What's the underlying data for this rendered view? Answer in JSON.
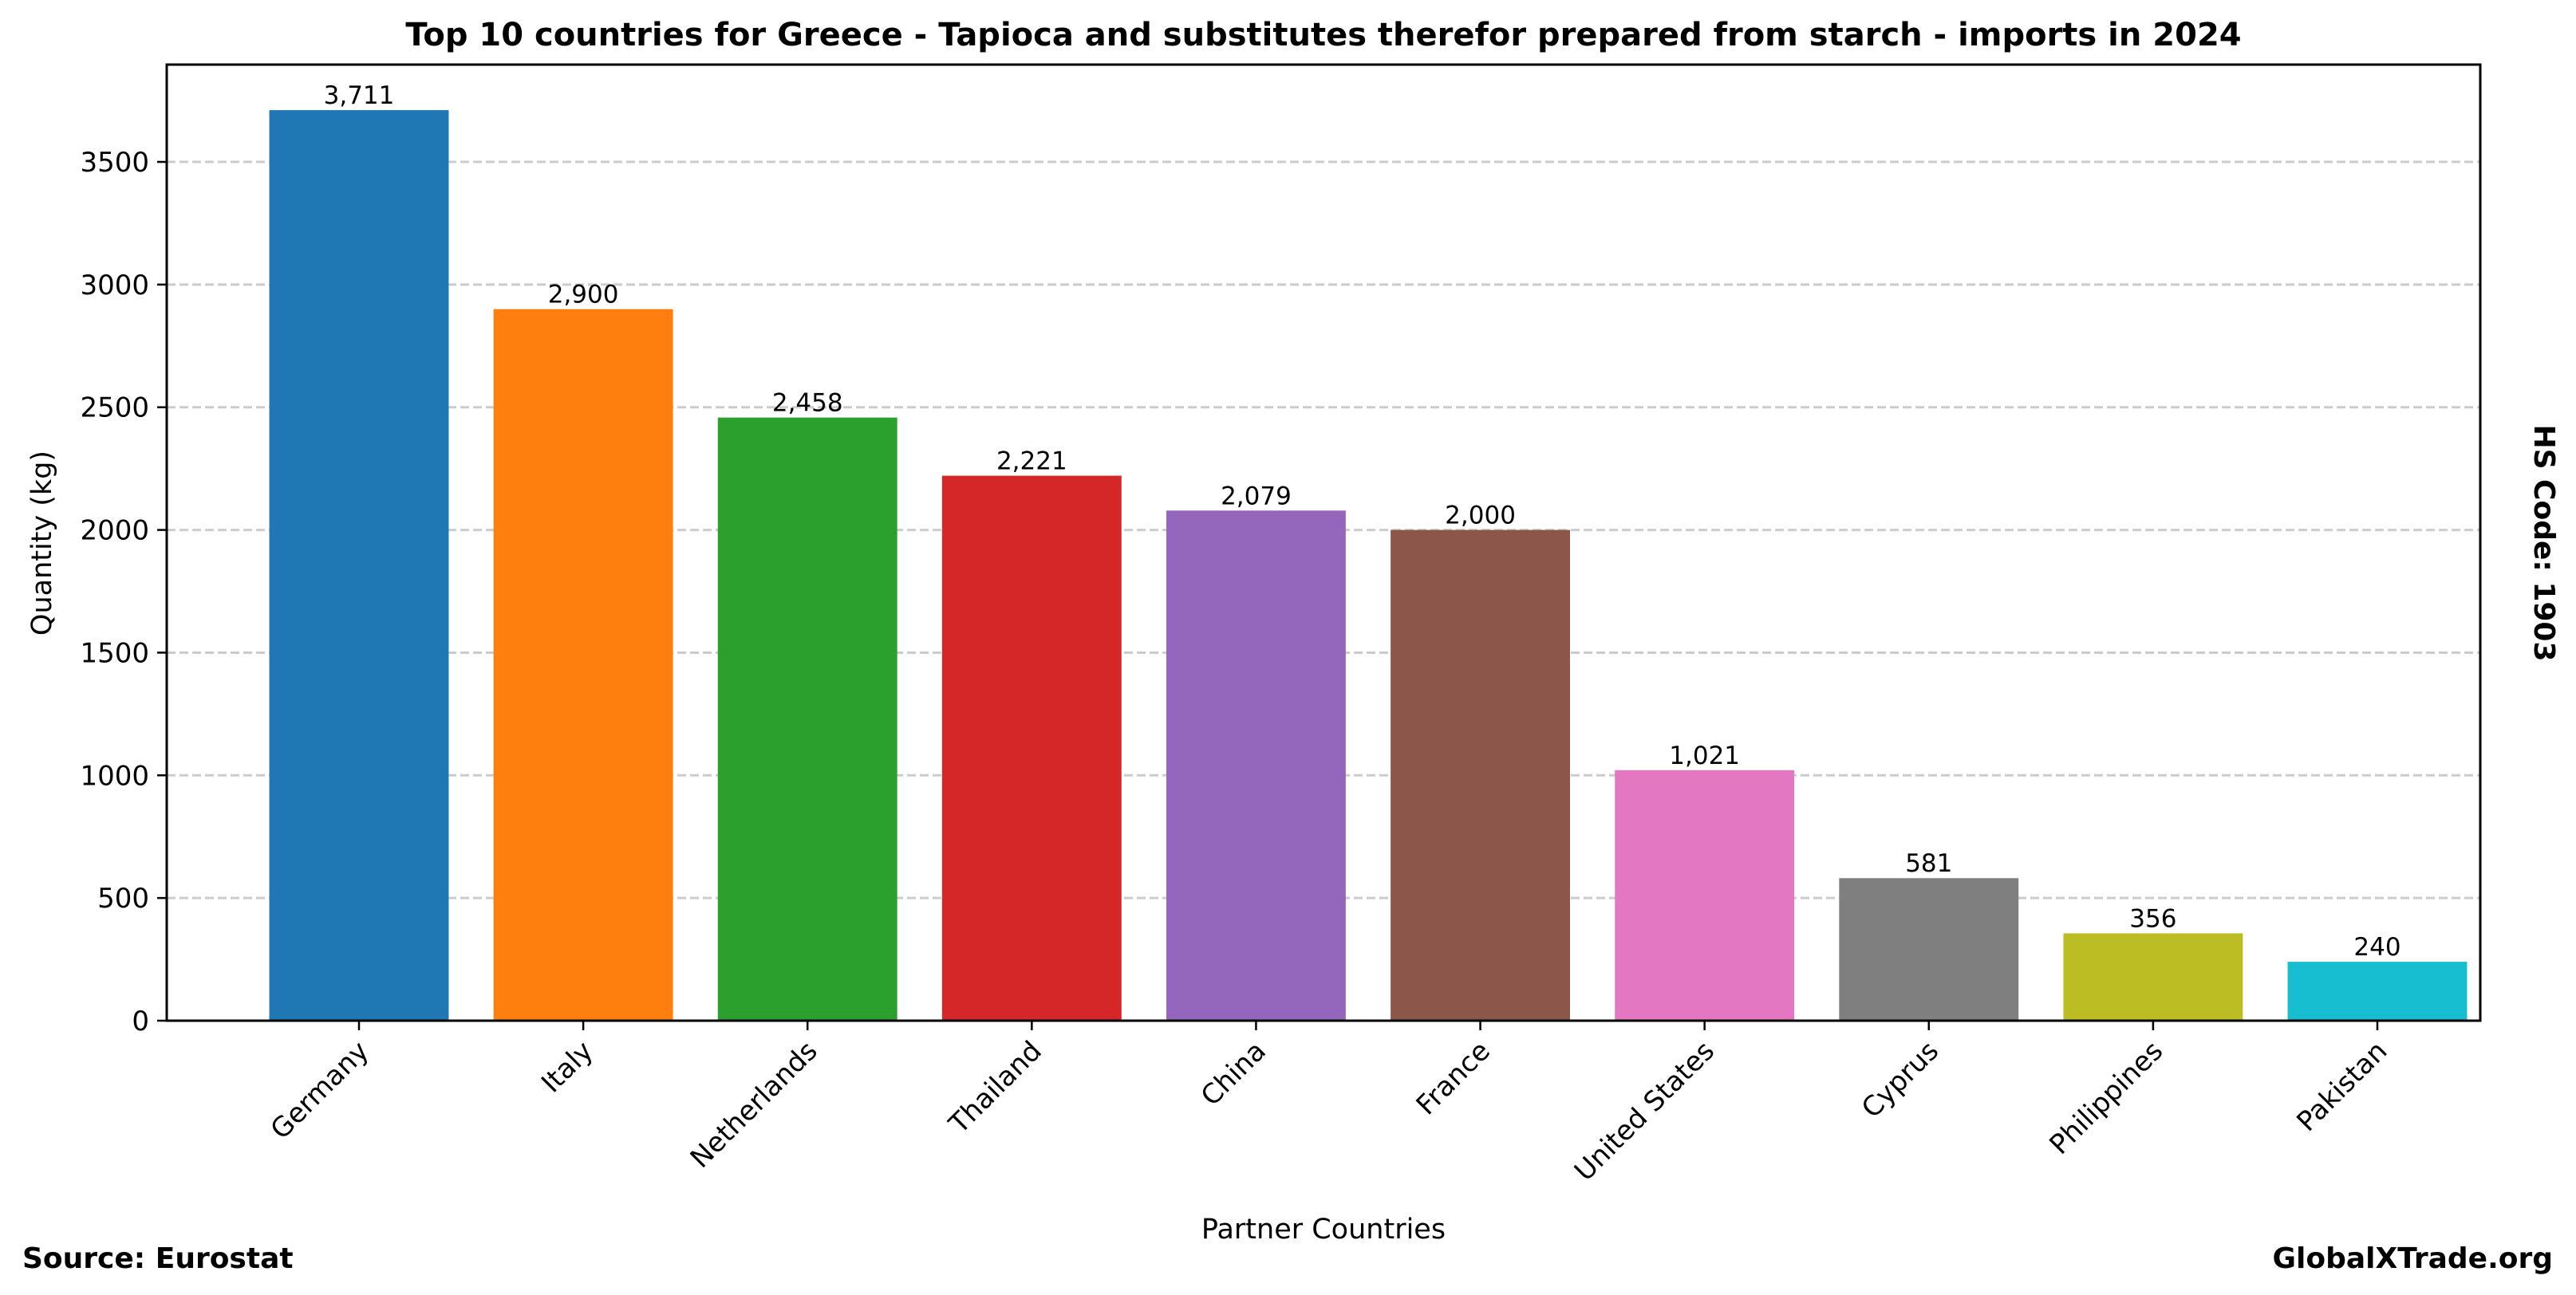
{
  "chart_data": {
    "type": "bar",
    "title": "Top 10 countries for Greece - Tapioca and substitutes therefor prepared from starch - imports in 2024",
    "xlabel": "Partner Countries",
    "ylabel": "Quantity (kg)",
    "ylim": [
      0,
      3896.55
    ],
    "yticks": [
      0,
      500,
      1000,
      1500,
      2000,
      2500,
      3000,
      3500
    ],
    "ytick_labels": [
      "0",
      "500",
      "1000",
      "1500",
      "2000",
      "2500",
      "3000",
      "3500"
    ],
    "grid": "y-dashed",
    "categories": [
      "Germany",
      "Italy",
      "Netherlands",
      "Thailand",
      "China",
      "France",
      "United States",
      "Cyprus",
      "Philippines",
      "Pakistan"
    ],
    "values": [
      3711,
      2900,
      2458,
      2221,
      2079,
      2000,
      1021,
      581,
      356,
      240
    ],
    "data_labels": [
      "3,711",
      "2,900",
      "2,458",
      "2,221",
      "2,079",
      "2,000",
      "1,021",
      "581",
      "356",
      "240"
    ],
    "colors": [
      "#1f77b4",
      "#ff7f0e",
      "#2ca02c",
      "#d62728",
      "#9467bd",
      "#8c564b",
      "#e377c2",
      "#7f7f7f",
      "#bcbd22",
      "#17becf"
    ]
  },
  "annotations": {
    "hs_code": "HS Code: 1903",
    "source": "Source: Eurostat",
    "brand": "GlobalXTrade.org"
  }
}
